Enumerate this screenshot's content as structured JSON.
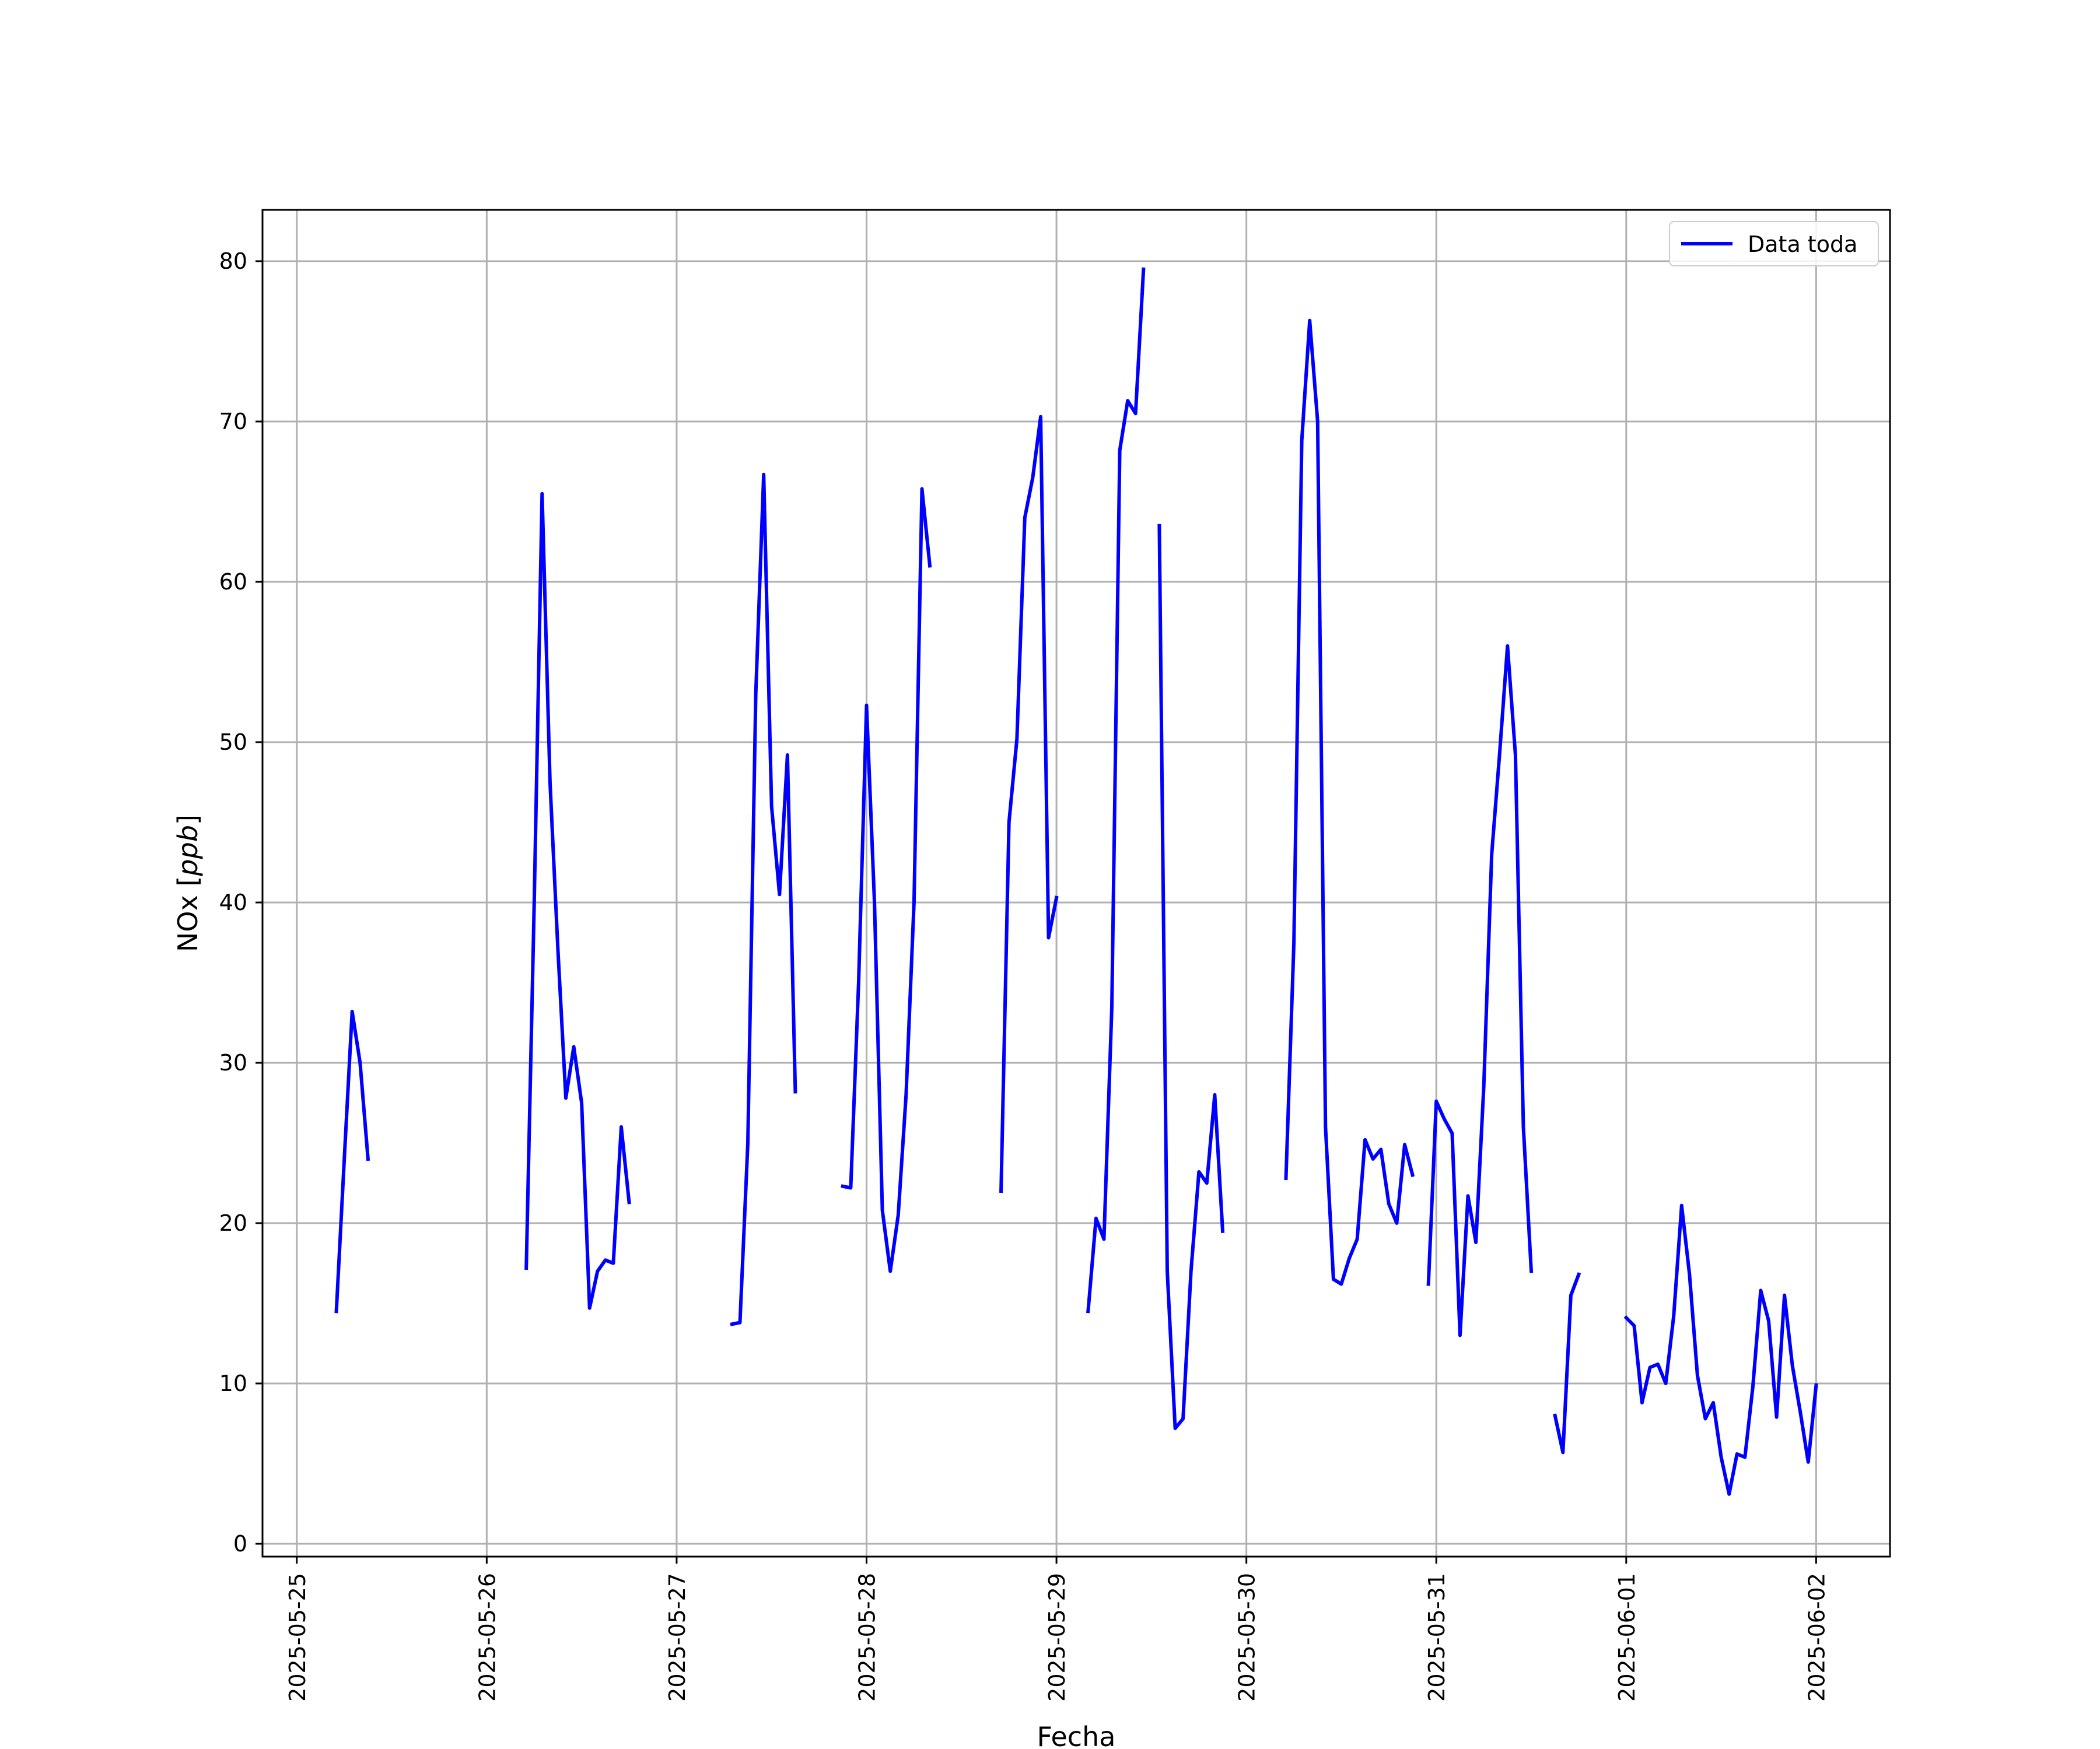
{
  "chart_data": {
    "type": "line",
    "xlabel": "Fecha",
    "ylabel": "NOx [ppb]",
    "ylabel_main": "NOx",
    "ylabel_unit": "ppb",
    "xlim": [
      "2025-05-24T19:40",
      "2025-06-02T09:20"
    ],
    "ylim": [
      -0.8,
      83.2
    ],
    "yticks": [
      0,
      10,
      20,
      30,
      40,
      50,
      60,
      70,
      80
    ],
    "xticks": [
      "2025-05-25",
      "2025-05-26",
      "2025-05-27",
      "2025-05-28",
      "2025-05-29",
      "2025-05-30",
      "2025-05-31",
      "2025-06-01",
      "2025-06-02"
    ],
    "grid": true,
    "legend_position": "top-right",
    "colors": {
      "series": "#0000ff",
      "grid": "#b0b0b0",
      "axis": "#000000"
    },
    "series": [
      {
        "name": "Data toda",
        "segments": [
          [
            [
              "2025-05-25T05:00",
              14.5
            ],
            [
              "2025-05-25T06:00",
              24
            ],
            [
              "2025-05-25T07:00",
              33.2
            ],
            [
              "2025-05-25T08:00",
              30
            ],
            [
              "2025-05-25T09:00",
              24
            ]
          ],
          [
            [
              "2025-05-26T05:00",
              17.2
            ],
            [
              "2025-05-26T06:00",
              40
            ],
            [
              "2025-05-26T07:00",
              65.5
            ],
            [
              "2025-05-26T08:00",
              47.5
            ],
            [
              "2025-05-26T09:00",
              37
            ],
            [
              "2025-05-26T10:00",
              27.8
            ],
            [
              "2025-05-26T11:00",
              31
            ],
            [
              "2025-05-26T12:00",
              27.5
            ],
            [
              "2025-05-26T13:00",
              14.7
            ],
            [
              "2025-05-26T14:00",
              17
            ],
            [
              "2025-05-26T15:00",
              17.7
            ],
            [
              "2025-05-26T16:00",
              17.5
            ],
            [
              "2025-05-26T17:00",
              26
            ],
            [
              "2025-05-26T18:00",
              21.3
            ]
          ],
          [
            [
              "2025-05-27T07:00",
              13.7
            ],
            [
              "2025-05-27T08:00",
              13.8
            ],
            [
              "2025-05-27T09:00",
              25
            ],
            [
              "2025-05-27T10:00",
              53
            ],
            [
              "2025-05-27T11:00",
              66.7
            ],
            [
              "2025-05-27T12:00",
              46
            ],
            [
              "2025-05-27T13:00",
              40.5
            ],
            [
              "2025-05-27T14:00",
              49.2
            ],
            [
              "2025-05-27T15:00",
              28.2
            ]
          ],
          [
            [
              "2025-05-27T21:00",
              22.3
            ],
            [
              "2025-05-27T22:00",
              22.2
            ],
            [
              "2025-05-27T23:00",
              35
            ],
            [
              "2025-05-28T00:00",
              52.3
            ],
            [
              "2025-05-28T01:00",
              40
            ],
            [
              "2025-05-28T02:00",
              20.8
            ],
            [
              "2025-05-28T03:00",
              17
            ],
            [
              "2025-05-28T04:00",
              20.5
            ],
            [
              "2025-05-28T05:00",
              28
            ],
            [
              "2025-05-28T06:00",
              40
            ],
            [
              "2025-05-28T07:00",
              65.8
            ],
            [
              "2025-05-28T08:00",
              61
            ]
          ],
          [
            [
              "2025-05-28T17:00",
              22
            ],
            [
              "2025-05-28T18:00",
              45
            ],
            [
              "2025-05-28T19:00",
              50.2
            ],
            [
              "2025-05-28T20:00",
              64
            ],
            [
              "2025-05-28T21:00",
              66.5
            ],
            [
              "2025-05-28T22:00",
              70.3
            ],
            [
              "2025-05-28T23:00",
              37.8
            ],
            [
              "2025-05-29T00:00",
              40.3
            ]
          ],
          [
            [
              "2025-05-29T04:00",
              14.5
            ],
            [
              "2025-05-29T05:00",
              20.3
            ],
            [
              "2025-05-29T06:00",
              19
            ],
            [
              "2025-05-29T07:00",
              33.5
            ],
            [
              "2025-05-29T08:00",
              68.2
            ],
            [
              "2025-05-29T09:00",
              71.3
            ],
            [
              "2025-05-29T10:00",
              70.5
            ],
            [
              "2025-05-29T11:00",
              79.5
            ]
          ],
          [
            [
              "2025-05-29T13:00",
              63.5
            ],
            [
              "2025-05-29T14:00",
              17
            ],
            [
              "2025-05-29T15:00",
              7.2
            ],
            [
              "2025-05-29T16:00",
              7.8
            ],
            [
              "2025-05-29T17:00",
              17
            ],
            [
              "2025-05-29T18:00",
              23.2
            ],
            [
              "2025-05-29T19:00",
              22.5
            ],
            [
              "2025-05-29T20:00",
              28
            ],
            [
              "2025-05-29T21:00",
              19.5
            ]
          ],
          [
            [
              "2025-05-30T05:00",
              22.8
            ],
            [
              "2025-05-30T06:00",
              37.5
            ],
            [
              "2025-05-30T07:00",
              68.8
            ],
            [
              "2025-05-30T08:00",
              76.3
            ],
            [
              "2025-05-30T09:00",
              70
            ],
            [
              "2025-05-30T10:00",
              26
            ],
            [
              "2025-05-30T11:00",
              16.5
            ],
            [
              "2025-05-30T12:00",
              16.2
            ],
            [
              "2025-05-30T13:00",
              17.8
            ],
            [
              "2025-05-30T14:00",
              19
            ],
            [
              "2025-05-30T15:00",
              25.2
            ],
            [
              "2025-05-30T16:00",
              24
            ],
            [
              "2025-05-30T17:00",
              24.6
            ],
            [
              "2025-05-30T18:00",
              21.2
            ],
            [
              "2025-05-30T19:00",
              20
            ],
            [
              "2025-05-30T20:00",
              24.9
            ],
            [
              "2025-05-30T21:00",
              23
            ]
          ],
          [
            [
              "2025-05-30T23:00",
              16.2
            ],
            [
              "2025-05-31T00:00",
              27.6
            ],
            [
              "2025-05-31T01:00",
              26.5
            ],
            [
              "2025-05-31T02:00",
              25.6
            ],
            [
              "2025-05-31T03:00",
              13
            ],
            [
              "2025-05-31T04:00",
              21.7
            ],
            [
              "2025-05-31T05:00",
              18.8
            ],
            [
              "2025-05-31T06:00",
              28.5
            ],
            [
              "2025-05-31T07:00",
              43
            ],
            [
              "2025-05-31T08:00",
              49.3
            ],
            [
              "2025-05-31T09:00",
              56
            ],
            [
              "2025-05-31T10:00",
              49.2
            ],
            [
              "2025-05-31T11:00",
              26
            ],
            [
              "2025-05-31T12:00",
              17
            ]
          ],
          [
            [
              "2025-05-31T15:00",
              8
            ],
            [
              "2025-05-31T16:00",
              5.7
            ],
            [
              "2025-05-31T17:00",
              15.5
            ],
            [
              "2025-05-31T18:00",
              16.8
            ]
          ],
          [
            [
              "2025-06-01T00:00",
              14.1
            ],
            [
              "2025-06-01T01:00",
              13.6
            ],
            [
              "2025-06-01T02:00",
              8.8
            ],
            [
              "2025-06-01T03:00",
              11
            ],
            [
              "2025-06-01T04:00",
              11.2
            ],
            [
              "2025-06-01T05:00",
              10
            ],
            [
              "2025-06-01T06:00",
              14.2
            ],
            [
              "2025-06-01T07:00",
              21.1
            ],
            [
              "2025-06-01T08:00",
              16.8
            ],
            [
              "2025-06-01T09:00",
              10.5
            ],
            [
              "2025-06-01T10:00",
              7.8
            ],
            [
              "2025-06-01T11:00",
              8.8
            ],
            [
              "2025-06-01T12:00",
              5.4
            ],
            [
              "2025-06-01T13:00",
              3.1
            ],
            [
              "2025-06-01T14:00",
              5.6
            ],
            [
              "2025-06-01T15:00",
              5.4
            ],
            [
              "2025-06-01T16:00",
              9.8
            ],
            [
              "2025-06-01T17:00",
              15.8
            ],
            [
              "2025-06-01T18:00",
              13.9
            ],
            [
              "2025-06-01T19:00",
              7.9
            ],
            [
              "2025-06-01T20:00",
              15.5
            ],
            [
              "2025-06-01T21:00",
              11.1
            ],
            [
              "2025-06-01T22:00",
              8.2
            ],
            [
              "2025-06-01T23:00",
              5.1
            ],
            [
              "2025-06-02T00:00",
              9.9
            ]
          ]
        ]
      }
    ]
  }
}
